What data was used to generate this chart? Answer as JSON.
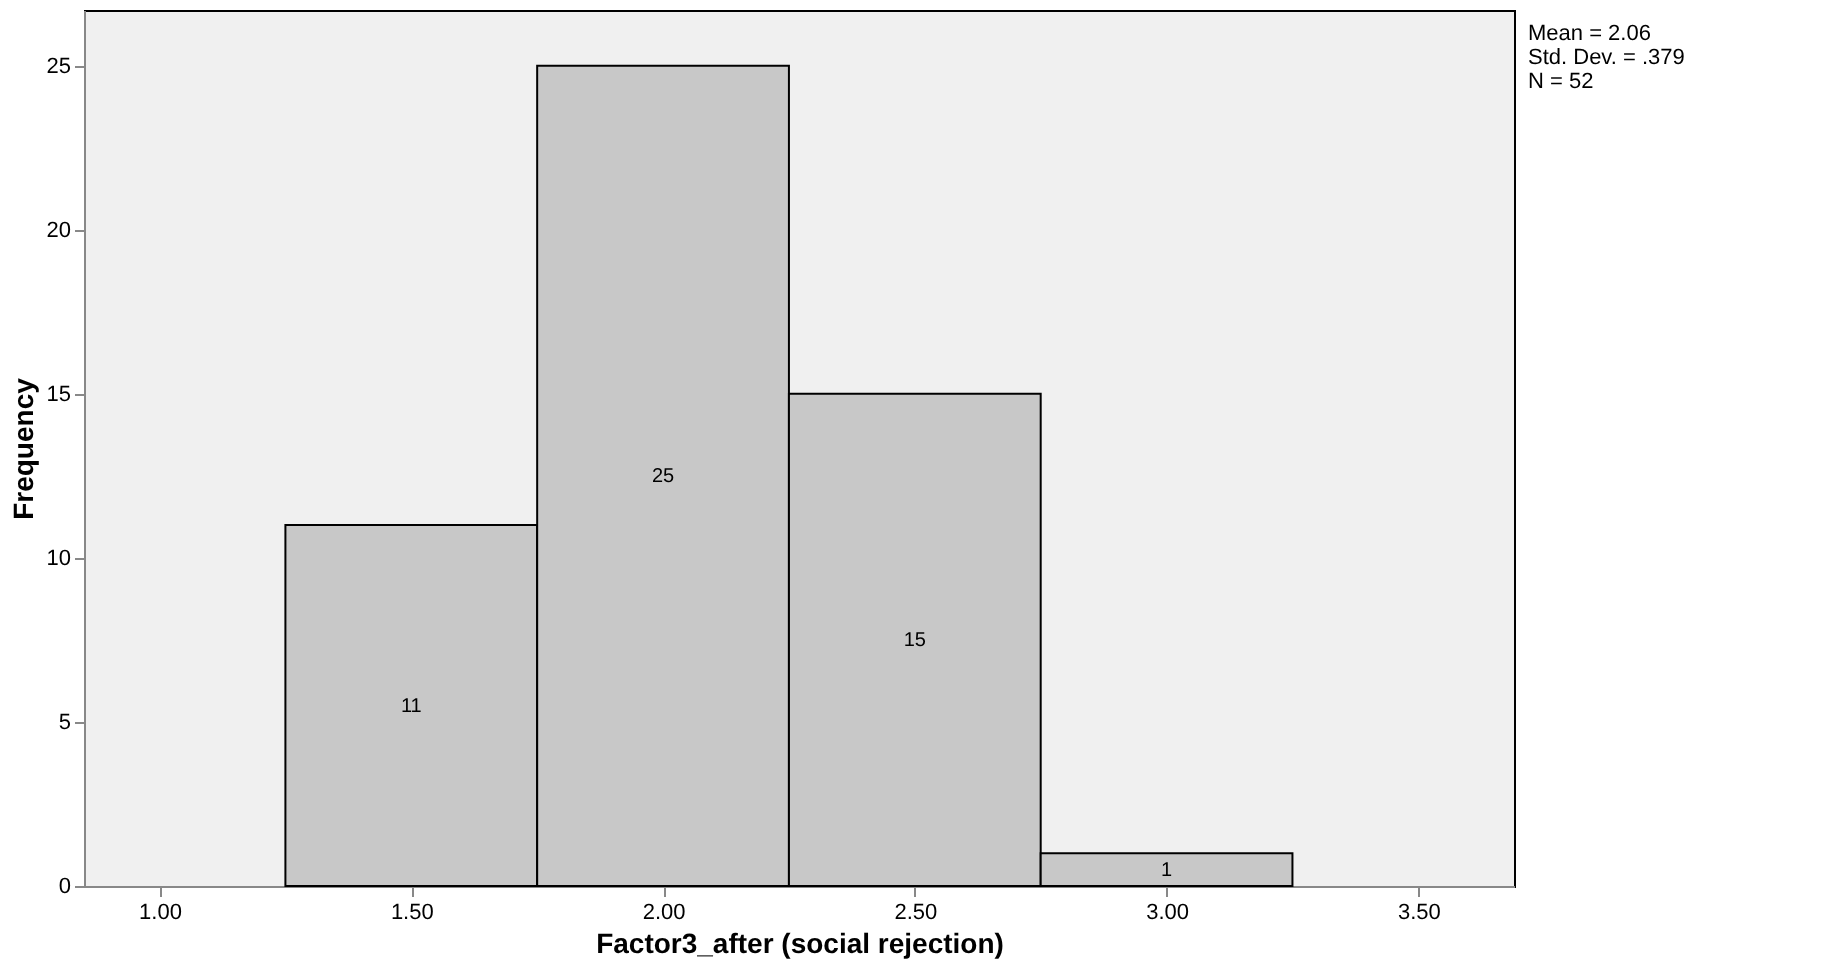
{
  "chart_data": {
    "type": "histogram",
    "bins": [
      1.25,
      1.75,
      2.25,
      2.75,
      3.25
    ],
    "values": [
      11,
      25,
      15,
      1
    ],
    "color": "#c8c8c8",
    "data_labels": true,
    "xlabel": "Factor3_after (social rejection)",
    "ylabel": "Frequency",
    "xlim": [
      0.85,
      3.69
    ],
    "xticks": [
      {
        "value": 1.0,
        "label": "1.00"
      },
      {
        "value": 1.5,
        "label": "1.50"
      },
      {
        "value": 2.0,
        "label": "2.00"
      },
      {
        "value": 2.5,
        "label": "2.50"
      },
      {
        "value": 3.0,
        "label": "3.00"
      },
      {
        "value": 3.5,
        "label": "3.50"
      }
    ],
    "ylim": [
      0,
      26.7
    ],
    "yticks": [
      0,
      5,
      10,
      15,
      20,
      25
    ],
    "grid": false,
    "annotations": [
      "Mean = 2.06",
      "Std. Dev. = .379",
      "N = 52"
    ]
  }
}
